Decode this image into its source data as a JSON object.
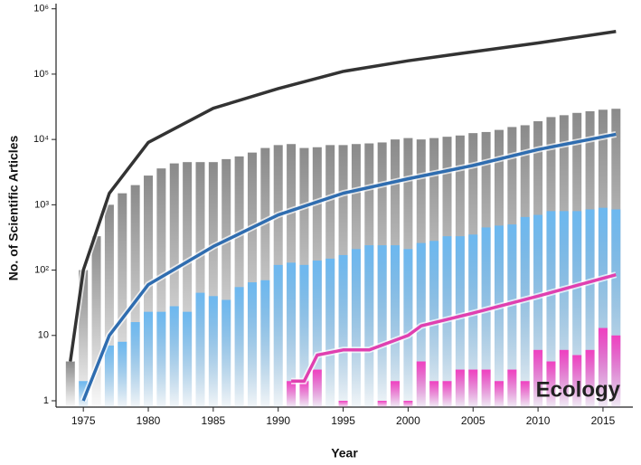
{
  "chart_data": {
    "type": "bar",
    "ylabel": "No. of Scientific Articles",
    "xlabel": "Year",
    "annotation": "Ecology",
    "log_y": true,
    "ylim": [
      0.8,
      1200000
    ],
    "yticks": [
      1,
      10,
      {
        "value": 100,
        "label": "10²"
      },
      {
        "value": 1000,
        "label": "10³"
      },
      {
        "value": 10000,
        "label": "10⁴"
      },
      {
        "value": 100000,
        "label": "10⁵"
      },
      {
        "value": 1000000,
        "label": "10⁶"
      }
    ],
    "xlim": [
      1972.9,
      2017.3
    ],
    "xticks": [
      1975,
      1980,
      1985,
      1990,
      1995,
      2000,
      2005,
      2010,
      2015
    ],
    "x": [
      1974,
      1975,
      1976,
      1977,
      1978,
      1979,
      1980,
      1981,
      1982,
      1983,
      1984,
      1985,
      1986,
      1987,
      1988,
      1989,
      1990,
      1991,
      1992,
      1993,
      1994,
      1995,
      1996,
      1997,
      1998,
      1999,
      2000,
      2001,
      2002,
      2003,
      2004,
      2005,
      2006,
      2007,
      2008,
      2009,
      2010,
      2011,
      2012,
      2013,
      2014,
      2015,
      2016
    ],
    "series": [
      {
        "color": "#8a8a8a",
        "values": [
          4,
          100,
          330,
          1000,
          1500,
          2000,
          2800,
          3600,
          4300,
          4500,
          4500,
          4500,
          5000,
          5500,
          6300,
          7400,
          8200,
          8500,
          7400,
          7600,
          8200,
          8200,
          8500,
          8700,
          9000,
          10000,
          10500,
          10000,
          10500,
          11000,
          11500,
          12500,
          13000,
          14000,
          15500,
          16500,
          19000,
          22000,
          23500,
          25500,
          27000,
          28500,
          29500
        ]
      },
      {
        "color": "#6cb8f0",
        "values": [
          null,
          2,
          null,
          7,
          8,
          16,
          23,
          23,
          28,
          23,
          45,
          40,
          35,
          55,
          65,
          70,
          120,
          130,
          120,
          140,
          150,
          170,
          210,
          240,
          240,
          240,
          210,
          260,
          280,
          330,
          330,
          350,
          450,
          480,
          500,
          650,
          700,
          800,
          800,
          800,
          850,
          900,
          850
        ]
      },
      {
        "color": "#f040c0",
        "values": [
          null,
          null,
          null,
          null,
          null,
          null,
          null,
          null,
          null,
          null,
          null,
          null,
          null,
          null,
          null,
          null,
          null,
          2,
          2,
          3,
          null,
          1,
          null,
          null,
          1,
          2,
          1,
          4,
          2,
          2,
          3,
          3,
          3,
          2,
          3,
          2,
          6,
          4,
          6,
          5,
          6,
          13,
          10
        ]
      }
    ],
    "lines": [
      {
        "color": "#333333",
        "x": [
          1974,
          1975,
          1977,
          1980,
          1985,
          1990,
          1995,
          2000,
          2005,
          2010,
          2016
        ],
        "values": [
          4,
          100,
          1500,
          9000,
          30000,
          60000,
          110000,
          160000,
          220000,
          300000,
          450000
        ]
      },
      {
        "color": "#2f6db0",
        "x": [
          1975,
          1977,
          1980,
          1985,
          1990,
          1995,
          2000,
          2005,
          2010,
          2016
        ],
        "values": [
          1,
          10,
          60,
          230,
          700,
          1500,
          2500,
          4000,
          7000,
          12000
        ]
      },
      {
        "color": "#e040b0",
        "x": [
          1991,
          1992,
          1993,
          1995,
          1997,
          2000,
          2001,
          2005,
          2010,
          2016
        ],
        "values": [
          2,
          2,
          5,
          6,
          6,
          10,
          14,
          22,
          40,
          85
        ]
      }
    ]
  }
}
